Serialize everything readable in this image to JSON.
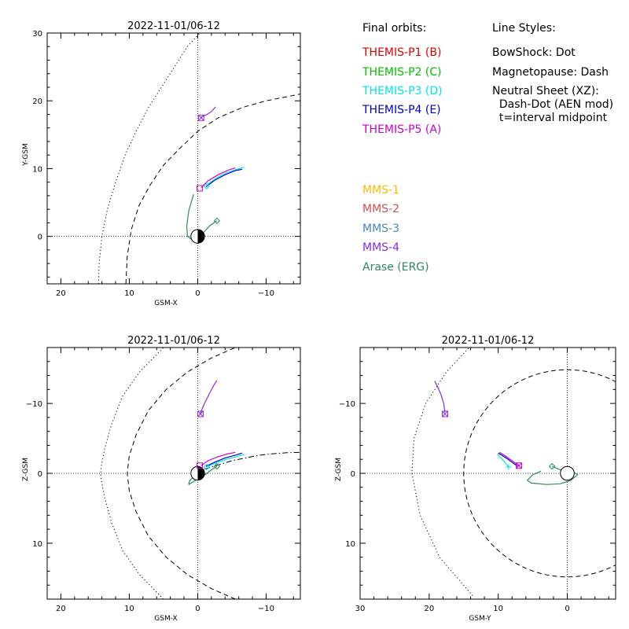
{
  "chart_data": [
    {
      "id": "xy",
      "type": "line",
      "title": "2022-11-01/06-12",
      "xlabel": "GSM-X",
      "ylabel": "Y-GSM",
      "xlim": [
        22,
        -15
      ],
      "ylim": [
        30,
        -7
      ],
      "xticks": [
        20,
        10,
        0,
        -10
      ],
      "xtick_labels": [
        "20",
        "10",
        "0",
        "−10"
      ],
      "yticks": [
        0,
        10,
        20,
        30
      ],
      "ytick_labels": [
        "0",
        "10",
        "20",
        "30"
      ],
      "grid": false,
      "series": [
        {
          "name": "BowShock",
          "style": "dot",
          "color": "#000000",
          "x": [
            14.5,
            14.4,
            14.0,
            13.2,
            12.0,
            10.6,
            9.0,
            7.2,
            5.3,
            3.4,
            1.5,
            -0.3
          ],
          "y": [
            -7,
            -4,
            0,
            4,
            8,
            12,
            15.5,
            19,
            22,
            25,
            28,
            30
          ]
        },
        {
          "name": "Magnetopause",
          "style": "dash",
          "color": "#000000",
          "x": [
            10.5,
            10.3,
            9.7,
            8.6,
            7.0,
            5.0,
            2.6,
            0,
            -3,
            -6.5,
            -10,
            -15
          ],
          "y": [
            -7,
            -3,
            1,
            4.5,
            7.5,
            10.5,
            13,
            15.5,
            17.5,
            19,
            20,
            21
          ]
        },
        {
          "name": "Arase (ERG)",
          "color": "#2e8b57",
          "x": [
            -2.8,
            -1.8,
            -0.5,
            0.8,
            1.5,
            1.6,
            1.3,
            0.6
          ],
          "y": [
            2.3,
            1.6,
            0.2,
            -0.5,
            0,
            1.5,
            3.8,
            6.2
          ]
        },
        {
          "name": "THEMIS-P4 (E)",
          "color": "#0000cc",
          "x": [
            -1.2,
            -2.5,
            -4.0,
            -5.5,
            -6.5
          ],
          "y": [
            7.3,
            8.3,
            9.1,
            9.7,
            9.9
          ]
        },
        {
          "name": "THEMIS-P3 (D)",
          "color": "#00e5e5",
          "x": [
            -1.3,
            -2.7,
            -4.2,
            -5.7,
            -6.8
          ],
          "y": [
            7.6,
            8.6,
            9.4,
            9.9,
            10.2
          ]
        },
        {
          "name": "THEMIS-P5 (A)",
          "color": "#cc00cc",
          "x": [
            -0.5,
            -1.5,
            -3.0,
            -4.5,
            -5.5
          ],
          "y": [
            7.2,
            8.2,
            9.1,
            9.8,
            10.1
          ]
        },
        {
          "name": "MMS-4",
          "color": "#8a2be2",
          "x": [
            -0.5,
            -1.2,
            -2.0,
            -2.6
          ],
          "y": [
            17.6,
            17.9,
            18.4,
            19.1
          ]
        }
      ],
      "markers": [
        {
          "series": "Arase (ERG)",
          "shape": "diamond",
          "x": -2.8,
          "y": 2.3
        },
        {
          "series": "THEMIS-P3 (D)",
          "shape": "diamond",
          "x": -1.3,
          "y": 7.4
        },
        {
          "series": "THEMIS-P5 (A)",
          "shape": "square",
          "x": -0.3,
          "y": 7.1
        },
        {
          "series": "MMS-4",
          "shape": "square-x",
          "x": -0.5,
          "y": 17.5
        }
      ]
    },
    {
      "id": "xz",
      "type": "line",
      "title": "2022-11-01/06-12",
      "xlabel": "GSM-X",
      "ylabel": "Z-GSM",
      "xlim": [
        22,
        -15
      ],
      "ylim": [
        -18,
        18
      ],
      "xticks": [
        20,
        10,
        0,
        -10
      ],
      "xtick_labels": [
        "20",
        "10",
        "0",
        "−10"
      ],
      "yticks": [
        -10,
        0,
        10
      ],
      "ytick_labels": [
        "−10",
        "0",
        "10"
      ],
      "grid": false,
      "series": [
        {
          "name": "BowShock",
          "style": "dot",
          "color": "#000000",
          "x": [
            5,
            8.5,
            11,
            12.6,
            13.6,
            14.1,
            14.2,
            14.1,
            13.6,
            12.6,
            11,
            8.5,
            5
          ],
          "y": [
            18,
            14.5,
            11,
            7,
            3.5,
            1,
            0,
            -1,
            -3.5,
            -7,
            -11,
            -14.5,
            -18
          ]
        },
        {
          "name": "Magnetopause",
          "style": "dash",
          "color": "#000000",
          "x": [
            -5.5,
            -2,
            1.5,
            4.6,
            7.2,
            9,
            10,
            10.3,
            10,
            9,
            7.2,
            4.6,
            1.5,
            -2,
            -5.5
          ],
          "y": [
            18,
            16.5,
            14.5,
            12,
            9,
            5.5,
            2.5,
            0,
            -2.5,
            -5.5,
            -9,
            -12,
            -14.5,
            -16.5,
            -18
          ]
        },
        {
          "name": "Neutral Sheet",
          "style": "dashdot",
          "color": "#000000",
          "x": [
            -1,
            -3,
            -5,
            -7,
            -9,
            -11,
            -13,
            -15
          ],
          "y": [
            -0.6,
            -1.2,
            -1.8,
            -2.2,
            -2.6,
            -2.8,
            -2.95,
            -3.0
          ]
        },
        {
          "name": "Arase (ERG)",
          "color": "#2e8b57",
          "x": [
            -2.8,
            -2.0,
            -0.8,
            0.5,
            1.3,
            1.2,
            0.6,
            -0.5
          ],
          "y": [
            -1.0,
            -0.5,
            0.4,
            1.1,
            1.6,
            1.1,
            0.5,
            0.1
          ]
        },
        {
          "name": "THEMIS-P4 (E)",
          "color": "#0000cc",
          "x": [
            -1.2,
            -2.5,
            -4.0,
            -5.5,
            -6.5
          ],
          "y": [
            -1.0,
            -1.6,
            -2.2,
            -2.6,
            -2.9
          ]
        },
        {
          "name": "THEMIS-P3 (D)",
          "color": "#00e5e5",
          "x": [
            -1.3,
            -2.7,
            -4.2,
            -5.7,
            -6.8
          ],
          "y": [
            -0.9,
            -1.5,
            -2.0,
            -2.4,
            -2.7
          ]
        },
        {
          "name": "THEMIS-P5 (A)",
          "color": "#cc00cc",
          "x": [
            -0.5,
            -1.5,
            -3.0,
            -4.5,
            -5.5
          ],
          "y": [
            -1.1,
            -1.8,
            -2.4,
            -2.8,
            -3.0
          ]
        },
        {
          "name": "MMS-4",
          "color": "#8a2be2",
          "x": [
            -0.4,
            -0.9,
            -1.6,
            -2.3,
            -2.8
          ],
          "y": [
            -8.6,
            -9.8,
            -11.2,
            -12.5,
            -13.3
          ]
        }
      ],
      "markers": [
        {
          "series": "Arase (ERG)",
          "shape": "diamond",
          "x": -2.8,
          "y": -1.0
        },
        {
          "series": "THEMIS-P3 (D)",
          "shape": "diamond",
          "x": -1.3,
          "y": -0.9
        },
        {
          "series": "THEMIS-P5 (A)",
          "shape": "square",
          "x": -0.3,
          "y": -1.1
        },
        {
          "series": "MMS-4",
          "shape": "square-x",
          "x": -0.4,
          "y": -8.5
        }
      ]
    },
    {
      "id": "yz",
      "type": "line",
      "title": "2022-11-01/06-12",
      "xlabel": "GSM-Y",
      "ylabel": "Z-GSM",
      "xlim": [
        30,
        -7
      ],
      "ylim": [
        -18,
        18
      ],
      "xticks": [
        30,
        20,
        10,
        0
      ],
      "xtick_labels": [
        "30",
        "20",
        "10",
        "0"
      ],
      "yticks": [
        -10,
        0,
        10
      ],
      "ytick_labels": [
        "−10",
        "0",
        "10"
      ],
      "grid": false,
      "series": [
        {
          "name": "BowShock",
          "style": "dot",
          "color": "#000000",
          "x": [
            13.7,
            18.5,
            21.3,
            22.5,
            22.2,
            20.5,
            17.5,
            14.2
          ],
          "y": [
            17.5,
            12,
            6,
            0,
            -5,
            -10,
            -14.5,
            -18
          ]
        },
        {
          "name": "Magnetopause",
          "style": "dash",
          "circle": true,
          "color": "#000000",
          "cx": 0,
          "cy": 0,
          "r": 15
        },
        {
          "name": "Arase (ERG)",
          "color": "#2e8b57",
          "x": [
            2.2,
            1.0,
            -0.5,
            -1.5,
            -0.5,
            1.0,
            3.0,
            5.2,
            5.8,
            5.0,
            3.8
          ],
          "y": [
            -1.0,
            -0.5,
            -0.4,
            0.2,
            1.0,
            1.5,
            1.6,
            1.4,
            1.0,
            0.2,
            -0.3
          ]
        },
        {
          "name": "THEMIS-P4 (E)",
          "color": "#0000cc",
          "x": [
            7.2,
            8.0,
            9.0,
            10.0
          ],
          "y": [
            -1.0,
            -1.6,
            -2.3,
            -2.9
          ]
        },
        {
          "name": "THEMIS-P3 (D)",
          "color": "#00e5e5",
          "x": [
            8.5,
            9.0,
            9.6,
            10.1
          ],
          "y": [
            -0.9,
            -1.5,
            -2.2,
            -2.7
          ]
        },
        {
          "name": "THEMIS-P5 (A)",
          "color": "#cc00cc",
          "x": [
            7.0,
            8.0,
            9.0,
            9.8
          ],
          "y": [
            -1.1,
            -1.8,
            -2.5,
            -3.0
          ]
        },
        {
          "name": "MMS-4",
          "color": "#8a2be2",
          "x": [
            17.7,
            17.9,
            18.3,
            18.8,
            19.2
          ],
          "y": [
            -8.7,
            -10,
            -11.3,
            -12.4,
            -13.2
          ]
        }
      ],
      "markers": [
        {
          "series": "Arase (ERG)",
          "shape": "diamond",
          "x": 2.2,
          "y": -1.0
        },
        {
          "series": "THEMIS-P3 (D)",
          "shape": "cross",
          "x": 8.5,
          "y": -0.9
        },
        {
          "series": "THEMIS-P5 (A)",
          "shape": "square-x",
          "x": 7.0,
          "y": -1.1
        },
        {
          "series": "MMS-4",
          "shape": "square-x",
          "x": 17.7,
          "y": -8.5
        }
      ]
    }
  ],
  "legend": {
    "final_orbits_title": "Final orbits:",
    "themis": [
      {
        "label": "THEMIS-P1 (B)",
        "color": "#e00000"
      },
      {
        "label": "THEMIS-P2 (C)",
        "color": "#00c000"
      },
      {
        "label": "THEMIS-P3 (D)",
        "color": "#00e5e5"
      },
      {
        "label": "THEMIS-P4 (E)",
        "color": "#0000cc"
      },
      {
        "label": "THEMIS-P5 (A)",
        "color": "#cc00cc"
      }
    ],
    "others": [
      {
        "label": "MMS-1",
        "color": "#ffb800"
      },
      {
        "label": "MMS-2",
        "color": "#d2504f"
      },
      {
        "label": "MMS-3",
        "color": "#4a86c8"
      },
      {
        "label": "MMS-4",
        "color": "#8a2be2"
      },
      {
        "label": "Arase (ERG)",
        "color": "#2e8b57"
      }
    ],
    "line_styles_title": "Line Styles:",
    "line_styles": [
      "BowShock: Dot",
      "Magnetopause: Dash",
      "Neutral Sheet (XZ):",
      "  Dash-Dot (AEN mod)",
      "  t=interval midpoint"
    ]
  }
}
